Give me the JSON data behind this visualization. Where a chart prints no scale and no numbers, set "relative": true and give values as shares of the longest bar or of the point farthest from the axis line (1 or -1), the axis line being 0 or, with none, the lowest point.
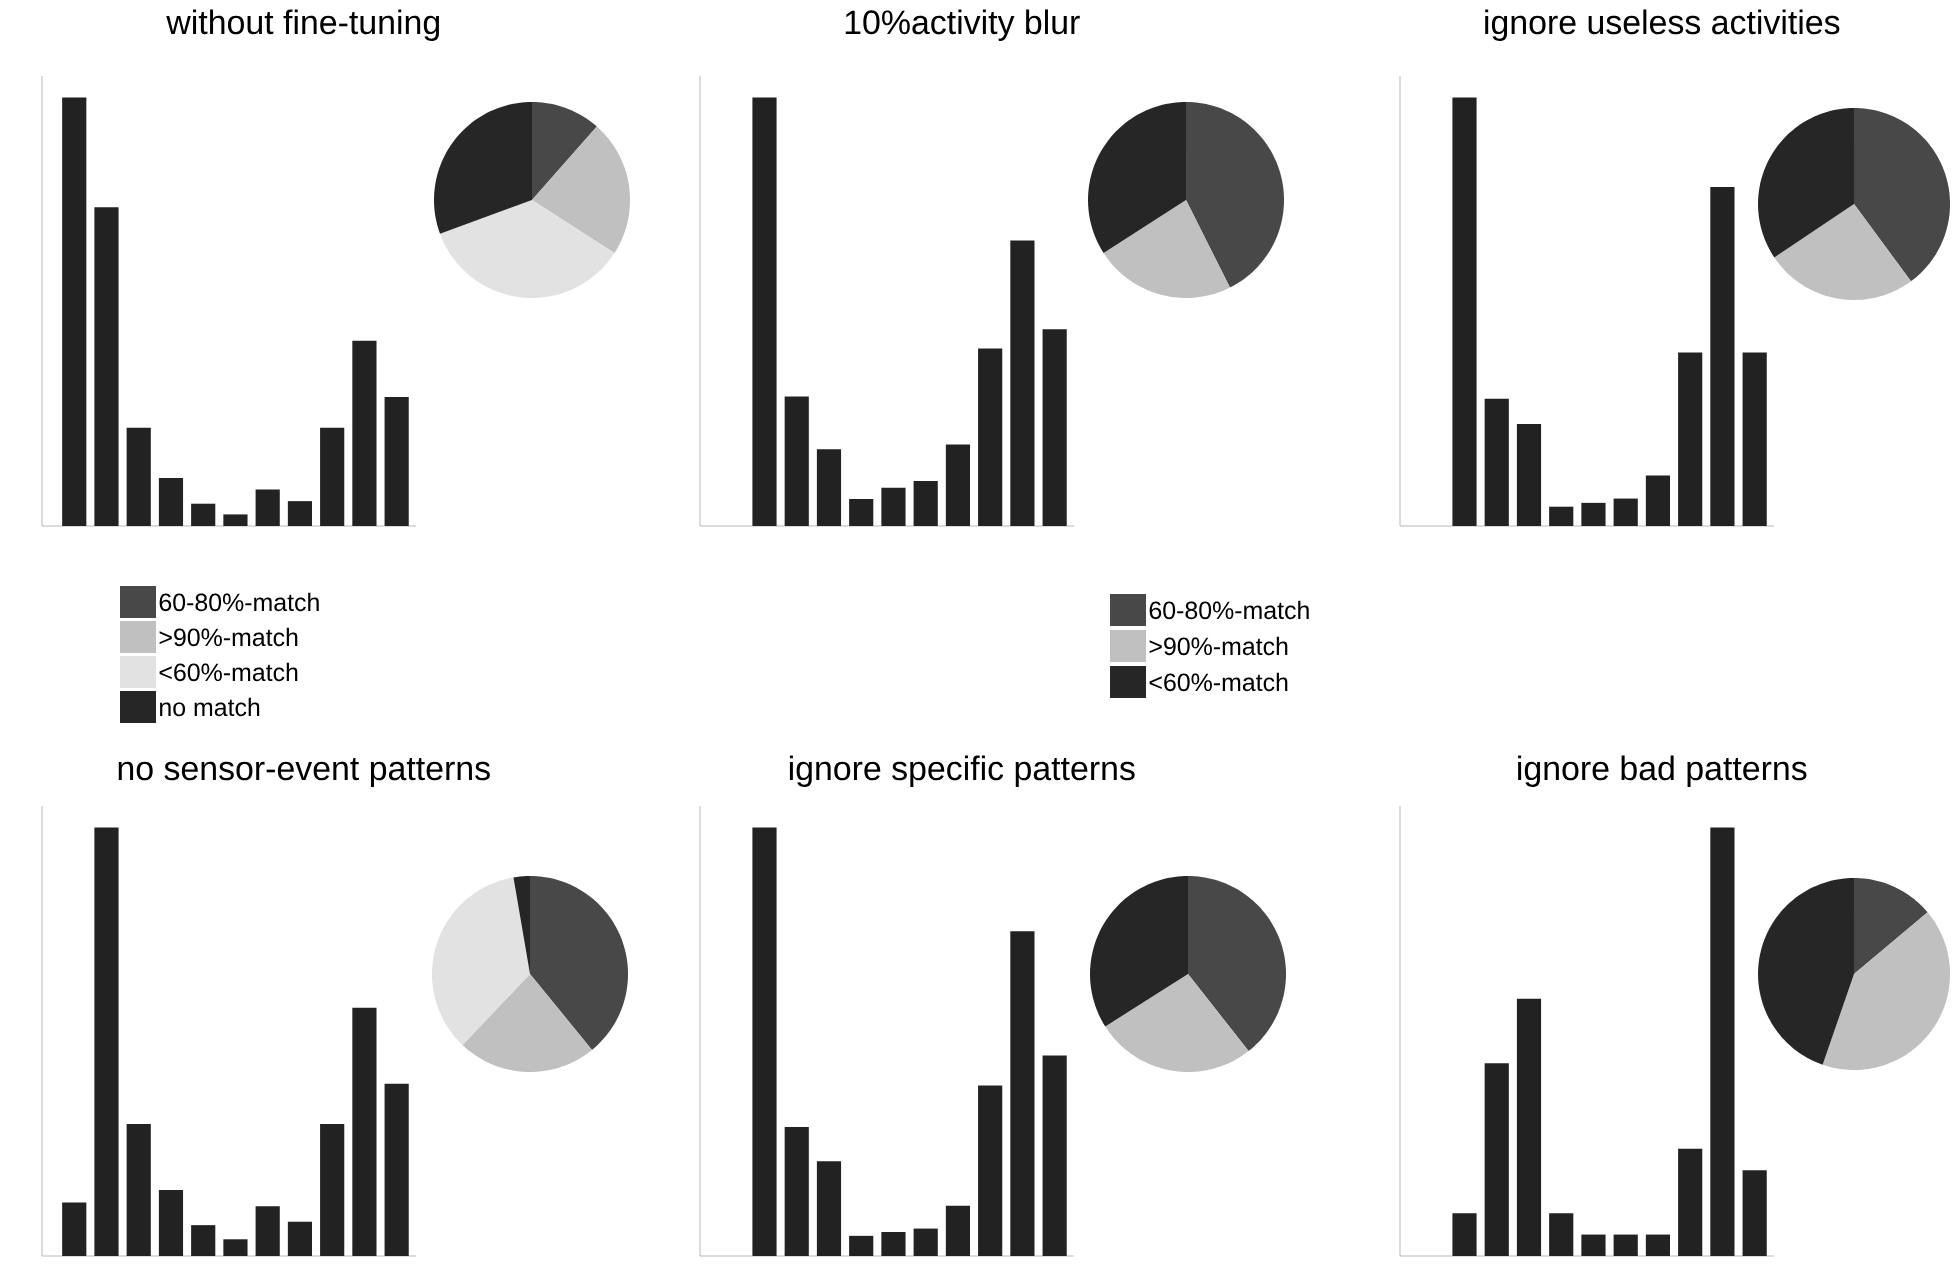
{
  "chart_data": [
    {
      "type": "bar",
      "title": "without fine-tuning",
      "categories": [
        null,
        null,
        null,
        null,
        null,
        null,
        null,
        null,
        null,
        null,
        null
      ],
      "values": [
        1,
        0.744,
        0.229,
        0.112,
        0.052,
        0.027,
        0.085,
        0.058,
        0.229,
        0.432,
        0.301
      ],
      "color": "#222222",
      "relative": true
    },
    {
      "type": "pie",
      "categories": [
        "60-80%-match",
        ">90%-match",
        "<60%-match",
        "no match"
      ],
      "values": [
        11.5,
        22.6,
        35.3,
        30.6
      ],
      "colors": [
        "#484848",
        "#c0c0c0",
        "#e2e2e2",
        "#262626"
      ],
      "legend": "bottom"
    },
    {
      "type": "bar",
      "title": "10%activity blur",
      "categories": [
        null,
        null,
        null,
        null,
        null,
        null,
        null,
        null,
        null,
        null
      ],
      "values": [
        1,
        0.302,
        0.179,
        0.063,
        0.089,
        0.105,
        0.19,
        0.414,
        0.666,
        0.459
      ],
      "color": "#222222",
      "relative": true
    },
    {
      "type": "pie",
      "categories": [
        "60-80%-match",
        ">90%-match",
        "<60%-match"
      ],
      "values": [
        42.6,
        23.3,
        34.1
      ],
      "colors": [
        "#484848",
        "#c0c0c0",
        "#262626"
      ],
      "legend": "bottom"
    },
    {
      "type": "bar",
      "title": "ignore useless activities",
      "categories": [
        null,
        null,
        null,
        null,
        null,
        null,
        null,
        null,
        null,
        null
      ],
      "values": [
        1,
        0.297,
        0.238,
        0.045,
        0.054,
        0.064,
        0.118,
        0.405,
        0.791,
        0.405
      ],
      "color": "#222222",
      "relative": true
    },
    {
      "type": "pie",
      "categories": [
        null,
        null,
        null
      ],
      "values": [
        39.9,
        25.7,
        34.4
      ],
      "colors": [
        "#484848",
        "#c0c0c0",
        "#262626"
      ]
    },
    {
      "type": "bar",
      "title": "no sensor-event patterns",
      "categories": [
        null,
        null,
        null,
        null,
        null,
        null,
        null,
        null,
        null,
        null,
        null
      ],
      "values": [
        0.125,
        1,
        0.308,
        0.154,
        0.072,
        0.039,
        0.116,
        0.08,
        0.308,
        0.579,
        0.402
      ],
      "color": "#222222",
      "relative": true
    },
    {
      "type": "pie",
      "categories": [
        null,
        null,
        null,
        null
      ],
      "values": [
        39.1,
        23.0,
        35.2,
        2.7
      ],
      "colors": [
        "#484848",
        "#c0c0c0",
        "#e2e2e2",
        "#262626"
      ]
    },
    {
      "type": "bar",
      "title": "ignore specific patterns",
      "categories": [
        null,
        null,
        null,
        null,
        null,
        null,
        null,
        null,
        null,
        null
      ],
      "values": [
        1,
        0.301,
        0.221,
        0.047,
        0.056,
        0.064,
        0.117,
        0.398,
        0.758,
        0.468
      ],
      "color": "#222222",
      "relative": true
    },
    {
      "type": "pie",
      "categories": [
        null,
        null,
        null
      ],
      "values": [
        39.4,
        26.6,
        34.0
      ],
      "colors": [
        "#484848",
        "#c0c0c0",
        "#262626"
      ]
    },
    {
      "type": "bar",
      "title": "ignore bad patterns",
      "categories": [
        null,
        null,
        null,
        null,
        null,
        null,
        null,
        null,
        null,
        null
      ],
      "values": [
        0.1,
        0.45,
        0.6,
        0.1,
        0.05,
        0.05,
        0.05,
        0.25,
        1,
        0.2
      ],
      "color": "#222222",
      "relative": true
    },
    {
      "type": "pie",
      "categories": [
        null,
        null,
        null
      ],
      "values": [
        13.9,
        41.4,
        44.7
      ],
      "colors": [
        "#484848",
        "#c0c0c0",
        "#262626"
      ]
    }
  ]
}
